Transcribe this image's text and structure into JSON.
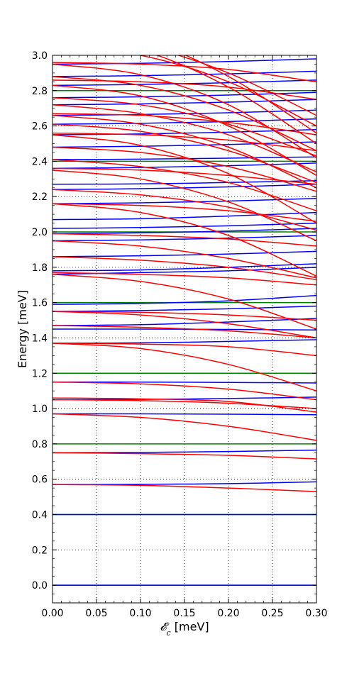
{
  "chart_data": {
    "type": "line",
    "xlabel": "𝓔",
    "xlabel_sub": "c",
    "xlabel_unit": " [meV]",
    "ylabel": "Energy [meV]",
    "xlim": [
      0.0,
      0.3
    ],
    "ylim": [
      -0.1,
      3.0
    ],
    "xticks": [
      0.0,
      0.05,
      0.1,
      0.15,
      0.2,
      0.25,
      0.3
    ],
    "xtick_labels": [
      "0.00",
      "0.05",
      "0.10",
      "0.15",
      "0.20",
      "0.25",
      "0.30"
    ],
    "yticks": [
      0.0,
      0.2,
      0.4,
      0.6,
      0.8,
      1.0,
      1.2,
      1.4,
      1.6,
      1.8,
      2.0,
      2.2,
      2.4,
      2.6,
      2.8,
      3.0
    ],
    "ytick_labels": [
      "0.0",
      "0.2",
      "0.4",
      "0.6",
      "0.8",
      "1.0",
      "1.2",
      "1.4",
      "1.6",
      "1.8",
      "2.0",
      "2.2",
      "2.4",
      "2.6",
      "2.8",
      "3.0"
    ],
    "grid": "dotted",
    "colors": {
      "green": "#008000",
      "blue": "#0000ff",
      "red": "#ff0000"
    },
    "series": [
      {
        "color": "green",
        "x": [
          0,
          0.3
        ],
        "y": [
          0.0,
          0.0
        ]
      },
      {
        "color": "green",
        "x": [
          0,
          0.3
        ],
        "y": [
          0.4,
          0.4
        ]
      },
      {
        "color": "green",
        "x": [
          0,
          0.3
        ],
        "y": [
          0.8,
          0.8
        ]
      },
      {
        "color": "green",
        "x": [
          0,
          0.3
        ],
        "y": [
          1.2,
          1.2
        ]
      },
      {
        "color": "green",
        "x": [
          0,
          0.3
        ],
        "y": [
          1.6,
          1.6
        ]
      },
      {
        "color": "green",
        "x": [
          0,
          0.3
        ],
        "y": [
          2.0,
          2.0
        ]
      },
      {
        "color": "green",
        "x": [
          0,
          0.3
        ],
        "y": [
          2.4,
          2.4
        ]
      },
      {
        "color": "green",
        "x": [
          0,
          0.3
        ],
        "y": [
          2.8,
          2.8
        ]
      },
      {
        "color": "blue",
        "x": [
          0,
          0.1,
          0.2,
          0.3
        ],
        "y": [
          0.0,
          0.0,
          0.0,
          0.0
        ]
      },
      {
        "color": "blue",
        "x": [
          0,
          0.1,
          0.2,
          0.3
        ],
        "y": [
          0.4,
          0.4,
          0.4,
          0.4
        ]
      },
      {
        "color": "blue",
        "x": [
          0,
          0.1,
          0.2,
          0.3
        ],
        "y": [
          0.57,
          0.571,
          0.575,
          0.585
        ]
      },
      {
        "color": "blue",
        "x": [
          0,
          0.1,
          0.2,
          0.3
        ],
        "y": [
          0.75,
          0.752,
          0.757,
          0.765
        ]
      },
      {
        "color": "blue",
        "x": [
          0,
          0.1,
          0.2,
          0.3
        ],
        "y": [
          0.97,
          0.97,
          0.968,
          0.965
        ]
      },
      {
        "color": "blue",
        "x": [
          0,
          0.1,
          0.2,
          0.3
        ],
        "y": [
          1.05,
          1.052,
          1.057,
          1.065
        ]
      },
      {
        "color": "blue",
        "x": [
          0,
          0.1,
          0.2,
          0.3
        ],
        "y": [
          1.15,
          1.15,
          1.148,
          1.145
        ]
      },
      {
        "color": "blue",
        "x": [
          0,
          0.1,
          0.2,
          0.3
        ],
        "y": [
          1.37,
          1.372,
          1.38,
          1.39
        ]
      },
      {
        "color": "blue",
        "x": [
          0,
          0.1,
          0.2,
          0.3
        ],
        "y": [
          1.45,
          1.45,
          1.448,
          1.445
        ]
      },
      {
        "color": "blue",
        "x": [
          0,
          0.1,
          0.2,
          0.3
        ],
        "y": [
          1.47,
          1.475,
          1.49,
          1.51
        ]
      },
      {
        "color": "blue",
        "x": [
          0,
          0.1,
          0.2,
          0.3
        ],
        "y": [
          1.55,
          1.555,
          1.565,
          1.58
        ]
      },
      {
        "color": "blue",
        "x": [
          0,
          0.1,
          0.2,
          0.3
        ],
        "y": [
          1.59,
          1.595,
          1.61,
          1.64
        ]
      },
      {
        "color": "blue",
        "x": [
          0,
          0.1,
          0.2,
          0.3
        ],
        "y": [
          1.76,
          1.77,
          1.78,
          1.8
        ]
      },
      {
        "color": "blue",
        "x": [
          0,
          0.1,
          0.2,
          0.3
        ],
        "y": [
          1.78,
          1.785,
          1.8,
          1.82
        ]
      },
      {
        "color": "blue",
        "x": [
          0,
          0.1,
          0.2,
          0.3
        ],
        "y": [
          1.86,
          1.865,
          1.875,
          1.89
        ]
      },
      {
        "color": "blue",
        "x": [
          0,
          0.1,
          0.2,
          0.3
        ],
        "y": [
          1.95,
          1.955,
          1.965,
          1.98
        ]
      },
      {
        "color": "blue",
        "x": [
          0,
          0.1,
          0.2,
          0.3
        ],
        "y": [
          1.99,
          1.995,
          2.005,
          2.02
        ]
      },
      {
        "color": "blue",
        "x": [
          0,
          0.1,
          0.2,
          0.3
        ],
        "y": [
          2.02,
          2.025,
          2.035,
          2.05
        ]
      },
      {
        "color": "blue",
        "x": [
          0,
          0.1,
          0.2,
          0.3
        ],
        "y": [
          2.07,
          2.075,
          2.09,
          2.11
        ]
      },
      {
        "color": "blue",
        "x": [
          0,
          0.1,
          0.2,
          0.3
        ],
        "y": [
          2.16,
          2.165,
          2.175,
          2.19
        ]
      },
      {
        "color": "blue",
        "x": [
          0,
          0.1,
          0.2,
          0.3
        ],
        "y": [
          2.24,
          2.245,
          2.255,
          2.27
        ]
      },
      {
        "color": "blue",
        "x": [
          0,
          0.1,
          0.2,
          0.3
        ],
        "y": [
          2.27,
          2.272,
          2.28,
          2.29
        ]
      },
      {
        "color": "blue",
        "x": [
          0,
          0.1,
          0.2,
          0.3
        ],
        "y": [
          2.36,
          2.365,
          2.375,
          2.39
        ]
      },
      {
        "color": "blue",
        "x": [
          0,
          0.1,
          0.2,
          0.3
        ],
        "y": [
          2.41,
          2.412,
          2.418,
          2.425
        ]
      },
      {
        "color": "blue",
        "x": [
          0,
          0.1,
          0.2,
          0.3
        ],
        "y": [
          2.48,
          2.485,
          2.495,
          2.51
        ]
      },
      {
        "color": "blue",
        "x": [
          0,
          0.1,
          0.2,
          0.3
        ],
        "y": [
          2.55,
          2.555,
          2.565,
          2.58
        ]
      },
      {
        "color": "blue",
        "x": [
          0,
          0.1,
          0.2,
          0.3
        ],
        "y": [
          2.61,
          2.615,
          2.625,
          2.64
        ]
      },
      {
        "color": "blue",
        "x": [
          0,
          0.1,
          0.2,
          0.3
        ],
        "y": [
          2.66,
          2.665,
          2.675,
          2.69
        ]
      },
      {
        "color": "blue",
        "x": [
          0,
          0.1,
          0.2,
          0.3
        ],
        "y": [
          2.72,
          2.725,
          2.735,
          2.75
        ]
      },
      {
        "color": "blue",
        "x": [
          0,
          0.1,
          0.2,
          0.3
        ],
        "y": [
          2.76,
          2.765,
          2.775,
          2.79
        ]
      },
      {
        "color": "blue",
        "x": [
          0,
          0.1,
          0.2,
          0.3
        ],
        "y": [
          2.83,
          2.835,
          2.845,
          2.86
        ]
      },
      {
        "color": "blue",
        "x": [
          0,
          0.1,
          0.2,
          0.3
        ],
        "y": [
          2.88,
          2.885,
          2.895,
          2.91
        ]
      },
      {
        "color": "blue",
        "x": [
          0,
          0.1,
          0.2,
          0.3
        ],
        "y": [
          2.95,
          2.955,
          2.965,
          2.98
        ]
      },
      {
        "color": "red",
        "x": [
          0,
          0.1,
          0.2,
          0.3
        ],
        "y": [
          0.57,
          0.565,
          0.55,
          0.53
        ]
      },
      {
        "color": "red",
        "x": [
          0,
          0.1,
          0.2,
          0.3
        ],
        "y": [
          0.75,
          0.745,
          0.735,
          0.715
        ]
      },
      {
        "color": "red",
        "x": [
          0,
          0.1,
          0.2,
          0.3
        ],
        "y": [
          0.97,
          0.95,
          0.9,
          0.82
        ]
      },
      {
        "color": "red",
        "x": [
          0,
          0.1,
          0.2,
          0.3
        ],
        "y": [
          1.05,
          1.045,
          1.03,
          1.0
        ]
      },
      {
        "color": "red",
        "x": [
          0,
          0.1,
          0.2,
          0.3
        ],
        "y": [
          1.06,
          1.055,
          1.04,
          0.98
        ]
      },
      {
        "color": "red",
        "x": [
          0,
          0.1,
          0.2,
          0.3
        ],
        "y": [
          1.15,
          1.14,
          1.11,
          1.05
        ]
      },
      {
        "color": "red",
        "x": [
          0,
          0.1,
          0.2,
          0.3
        ],
        "y": [
          1.37,
          1.34,
          1.25,
          1.1
        ]
      },
      {
        "color": "red",
        "x": [
          0,
          0.1,
          0.2,
          0.3
        ],
        "y": [
          1.37,
          1.365,
          1.35,
          1.3
        ]
      },
      {
        "color": "red",
        "x": [
          0,
          0.1,
          0.2,
          0.3
        ],
        "y": [
          1.47,
          1.46,
          1.44,
          1.4
        ]
      },
      {
        "color": "red",
        "x": [
          0,
          0.1,
          0.2,
          0.3
        ],
        "y": [
          1.55,
          1.53,
          1.48,
          1.4
        ]
      },
      {
        "color": "red",
        "x": [
          0,
          0.1,
          0.2,
          0.3
        ],
        "y": [
          1.55,
          1.545,
          1.53,
          1.5
        ]
      },
      {
        "color": "red",
        "x": [
          0,
          0.1,
          0.2,
          0.3
        ],
        "y": [
          1.76,
          1.72,
          1.62,
          1.45
        ]
      },
      {
        "color": "red",
        "x": [
          0,
          0.1,
          0.2,
          0.3
        ],
        "y": [
          1.77,
          1.76,
          1.74,
          1.7
        ]
      },
      {
        "color": "red",
        "x": [
          0,
          0.1,
          0.2,
          0.3
        ],
        "y": [
          1.86,
          1.84,
          1.8,
          1.73
        ]
      },
      {
        "color": "red",
        "x": [
          0,
          0.1,
          0.2,
          0.3
        ],
        "y": [
          1.95,
          1.92,
          1.85,
          1.74
        ]
      },
      {
        "color": "red",
        "x": [
          0,
          0.1,
          0.2,
          0.3
        ],
        "y": [
          1.99,
          1.98,
          1.96,
          1.92
        ]
      },
      {
        "color": "red",
        "x": [
          0,
          0.1,
          0.2,
          0.3
        ],
        "y": [
          2.16,
          2.11,
          1.98,
          1.75
        ]
      },
      {
        "color": "red",
        "x": [
          0,
          0.1,
          0.2,
          0.3
        ],
        "y": [
          2.16,
          2.15,
          2.12,
          2.06
        ]
      },
      {
        "color": "red",
        "x": [
          0,
          0.1,
          0.2,
          0.3
        ],
        "y": [
          2.24,
          2.21,
          2.14,
          2.01
        ]
      },
      {
        "color": "red",
        "x": [
          0,
          0.1,
          0.2,
          0.3
        ],
        "y": [
          2.35,
          2.3,
          2.17,
          1.95
        ]
      },
      {
        "color": "red",
        "x": [
          0,
          0.1,
          0.2,
          0.3
        ],
        "y": [
          2.36,
          2.35,
          2.32,
          2.27
        ]
      },
      {
        "color": "red",
        "x": [
          0,
          0.1,
          0.2,
          0.3
        ],
        "y": [
          2.41,
          2.37,
          2.28,
          2.12
        ]
      },
      {
        "color": "red",
        "x": [
          0,
          0.1,
          0.2,
          0.3
        ],
        "y": [
          2.48,
          2.45,
          2.37,
          2.23
        ]
      },
      {
        "color": "red",
        "x": [
          0,
          0.1,
          0.2,
          0.3
        ],
        "y": [
          2.55,
          2.49,
          2.33,
          2.05
        ]
      },
      {
        "color": "red",
        "x": [
          0,
          0.1,
          0.2,
          0.3
        ],
        "y": [
          2.56,
          2.55,
          2.52,
          2.46
        ]
      },
      {
        "color": "red",
        "x": [
          0,
          0.1,
          0.2,
          0.3
        ],
        "y": [
          2.61,
          2.57,
          2.46,
          2.28
        ]
      },
      {
        "color": "red",
        "x": [
          0,
          0.1,
          0.2,
          0.3
        ],
        "y": [
          2.66,
          2.61,
          2.48,
          2.25
        ]
      },
      {
        "color": "red",
        "x": [
          0,
          0.1,
          0.2,
          0.3
        ],
        "y": [
          2.67,
          2.66,
          2.62,
          2.55
        ]
      },
      {
        "color": "red",
        "x": [
          0,
          0.1,
          0.2,
          0.3
        ],
        "y": [
          2.72,
          2.67,
          2.55,
          2.34
        ]
      },
      {
        "color": "red",
        "x": [
          0,
          0.1,
          0.2,
          0.3
        ],
        "y": [
          2.76,
          2.72,
          2.61,
          2.43
        ]
      },
      {
        "color": "red",
        "x": [
          0,
          0.1,
          0.2,
          0.3
        ],
        "y": [
          2.83,
          2.77,
          2.6,
          2.32
        ]
      },
      {
        "color": "red",
        "x": [
          0,
          0.1,
          0.2,
          0.3
        ],
        "y": [
          2.86,
          2.85,
          2.82,
          2.75
        ]
      },
      {
        "color": "red",
        "x": [
          0,
          0.1,
          0.2,
          0.3
        ],
        "y": [
          2.88,
          2.83,
          2.69,
          2.46
        ]
      },
      {
        "color": "red",
        "x": [
          0,
          0.1,
          0.2,
          0.3
        ],
        "y": [
          2.95,
          2.89,
          2.72,
          2.42
        ]
      },
      {
        "color": "red",
        "x": [
          0,
          0.1,
          0.2,
          0.3
        ],
        "y": [
          2.96,
          2.95,
          2.92,
          2.85
        ]
      },
      {
        "color": "red",
        "x": [
          0,
          0.1,
          0.2,
          0.3
        ],
        "y": [
          3.05,
          3.0,
          2.85,
          2.6
        ]
      },
      {
        "color": "red",
        "x": [
          0,
          0.1,
          0.2,
          0.3
        ],
        "y": [
          3.1,
          3.03,
          2.82,
          2.5
        ]
      },
      {
        "color": "red",
        "x": [
          0,
          0.1,
          0.2,
          0.3
        ],
        "y": [
          3.15,
          3.06,
          2.9,
          2.66
        ]
      },
      {
        "color": "red",
        "x": [
          0,
          0.1,
          0.2,
          0.3
        ],
        "y": [
          3.2,
          3.1,
          2.88,
          2.56
        ]
      }
    ]
  }
}
